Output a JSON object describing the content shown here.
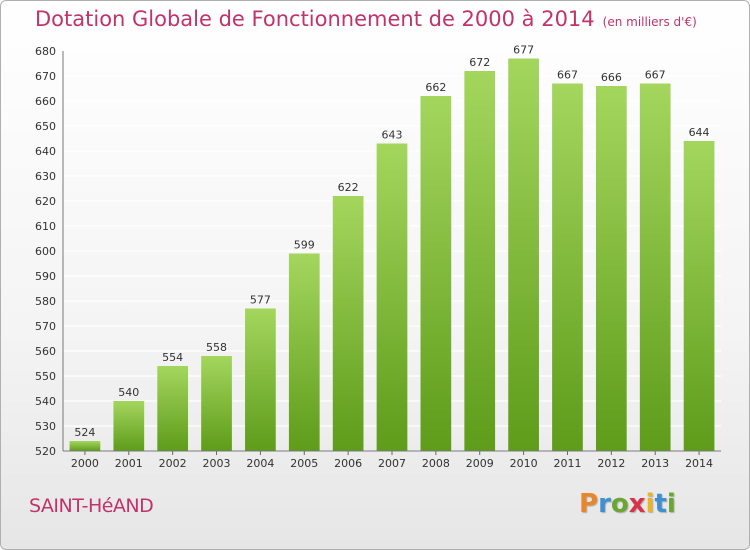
{
  "header": {
    "title": "Dotation Globale de Fonctionnement de 2000 à 2014",
    "subtitle": "(en milliers d'€)"
  },
  "footer": {
    "commune": "SAINT-HéAND",
    "logo_text": "Proxiti",
    "logo_colors": [
      "#e8862a",
      "#3f8fd2",
      "#6aa632",
      "#d9334a",
      "#e8b52a",
      "#3f8fd2",
      "#6aa632"
    ]
  },
  "colors": {
    "title": "#c0336b",
    "bar_top": "#a4d65e",
    "bar_bottom": "#5e9c1a",
    "grid": "#ffffff"
  },
  "chart_data": {
    "type": "bar",
    "title": "Dotation Globale de Fonctionnement de 2000 à 2014",
    "subtitle": "(en milliers d'€)",
    "categories": [
      "2000",
      "2001",
      "2002",
      "2003",
      "2004",
      "2005",
      "2006",
      "2007",
      "2008",
      "2009",
      "2010",
      "2011",
      "2012",
      "2013",
      "2014"
    ],
    "values": [
      524,
      540,
      554,
      558,
      577,
      599,
      622,
      643,
      662,
      672,
      677,
      667,
      666,
      667,
      644
    ],
    "ylim": [
      520,
      680
    ],
    "yticks": [
      520,
      530,
      540,
      550,
      560,
      570,
      580,
      590,
      600,
      610,
      620,
      630,
      640,
      650,
      660,
      670,
      680
    ],
    "grid": true,
    "legend": "none"
  }
}
